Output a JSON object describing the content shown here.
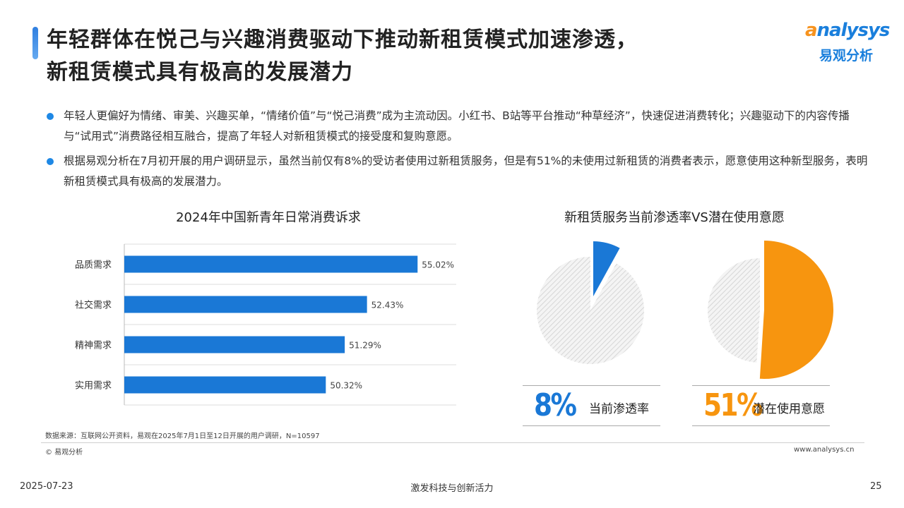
{
  "header": {
    "title_line1": "年轻群体在悦己与兴趣消费驱动下推动新租赁模式加速渗透，",
    "title_line2": "新租赁模式具有极高的发展潜力"
  },
  "logo": {
    "word_prefix": "a",
    "word_rest": "nalysys",
    "cn": "易观分析"
  },
  "bullets": [
    "年轻人更偏好为情绪、审美、兴趣买单，“情绪价值”与“悦己消费”成为主流动因。小红书、B站等平台推动“种草经济”，快速促进消费转化；兴趣驱动下的内容传播与“试用式”消费路径相互融合，提高了年轻人对新租赁模式的接受度和复购意愿。",
    "根据易观分析在7月初开展的用户调研显示，虽然当前仅有8%的受访者使用过新租赁服务，但是有51%的未使用过新租赁的消费者表示，愿意使用这种新型服务，表明新租赁模式具有极高的发展潜力。"
  ],
  "chart_data": [
    {
      "type": "bar",
      "orientation": "horizontal",
      "title": "2024年中国新青年日常消费诉求",
      "categories": [
        "品质需求",
        "社交需求",
        "精神需求",
        "实用需求"
      ],
      "values": [
        55.02,
        52.43,
        51.29,
        50.32
      ],
      "value_labels": [
        "55.02%",
        "52.43%",
        "51.29%",
        "50.32%"
      ],
      "xlim": [
        40,
        57
      ],
      "color": "#1a78d6",
      "grid": true
    },
    {
      "type": "pie",
      "title": "新租赁服务当前渗透率VS潜在使用意愿",
      "pies": [
        {
          "label": "当前渗透率",
          "value": 8,
          "display": "8%",
          "color": "#1a78d6"
        },
        {
          "label": "潜在使用意愿",
          "value": 51,
          "display": "51%",
          "color": "#f7950f"
        }
      ]
    }
  ],
  "footer": {
    "source": "数据来源：互联网公开资料，易观在2025年7月1日至12日开展的用户调研，N=10597",
    "copyright": "© 易观分析",
    "site": "www.analysys.cn",
    "date": "2025-07-23",
    "slogan": "激发科技与创新活力",
    "page": "25"
  }
}
